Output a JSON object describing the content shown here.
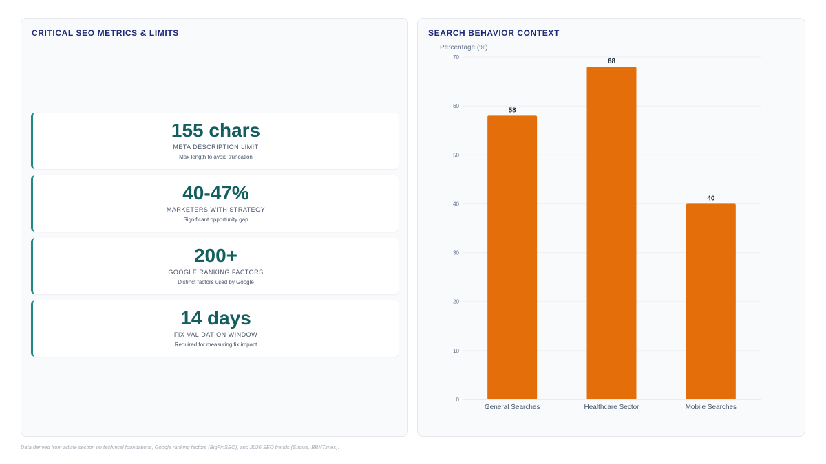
{
  "left_panel": {
    "title": "CRITICAL SEO METRICS & LIMITS",
    "cards": [
      {
        "value": "155 chars",
        "label": "META DESCRIPTION LIMIT",
        "sub": "Max length to avoid truncation"
      },
      {
        "value": "40-47%",
        "label": "MARKETERS WITH STRATEGY",
        "sub": "Significant opportunity gap"
      },
      {
        "value": "200+",
        "label": "GOOGLE RANKING FACTORS",
        "sub": "Distinct factors used by Google"
      },
      {
        "value": "14 days",
        "label": "FIX VALIDATION WINDOW",
        "sub": "Required for measuring fix impact"
      }
    ]
  },
  "right_panel": {
    "title": "SEARCH BEHAVIOR CONTEXT"
  },
  "chart_data": {
    "type": "bar",
    "categories": [
      "General Searches",
      "Healthcare Sector",
      "Mobile Searches"
    ],
    "values": [
      58,
      68,
      40
    ],
    "data_labels": [
      "58",
      "68",
      "40"
    ],
    "ylabel": "Percentage (%)",
    "xlabel": "",
    "ylim": [
      0,
      70
    ],
    "yticks": [
      "0",
      "10",
      "20",
      "30",
      "40",
      "50",
      "60",
      "70"
    ],
    "bar_color": "#e46e0a",
    "grid": true,
    "legend": "none"
  },
  "footnote": "Data derived from article section on technical foundations, Google ranking factors (BigFinSEO), and 2026 SEO trends (Snoika, BBNTimes).",
  "colors": {
    "accent": "#1f8a83",
    "metric_value": "#135e5e",
    "title": "#1e2a78",
    "bar": "#e46e0a"
  }
}
